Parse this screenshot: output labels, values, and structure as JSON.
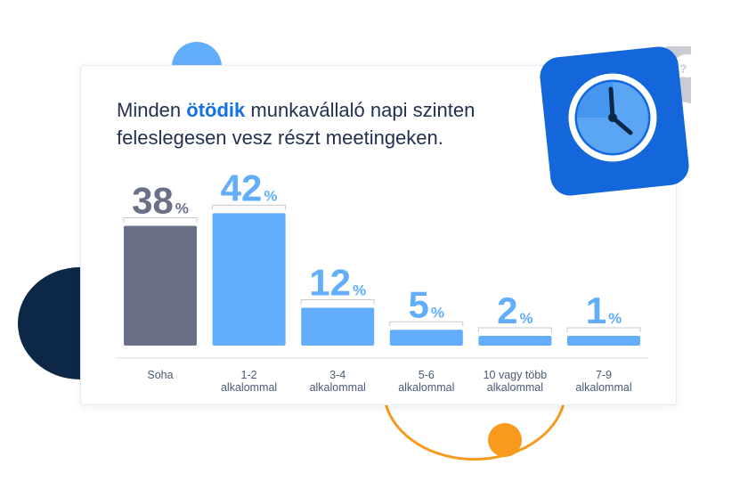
{
  "headline": {
    "prefix": "Minden ",
    "highlight": "ötödik",
    "suffix": " munkavállaló napi szinten feleslegesen vesz részt meetingeken."
  },
  "chart_data": {
    "type": "bar",
    "title": "",
    "xlabel": "",
    "ylabel": "",
    "ylim": [
      0,
      45
    ],
    "value_suffix": "%",
    "categories": [
      [
        "Soha"
      ],
      [
        "1-2",
        "alkalommal"
      ],
      [
        "3-4",
        "alkalommal"
      ],
      [
        "5-6",
        "alkalommal"
      ],
      [
        "10 vagy több",
        "alkalommal"
      ],
      [
        "7-9",
        "alkalommal"
      ]
    ],
    "values": [
      38,
      42,
      12,
      5,
      2,
      1
    ],
    "colors": [
      "#6a7186",
      "#63aefc",
      "#63aefc",
      "#63aefc",
      "#63aefc",
      "#63aefc"
    ]
  },
  "icons": {
    "clock": "clock-icon",
    "chat": "question-chat-icon"
  },
  "colors": {
    "accent": "#1472e6",
    "bar_blue": "#63aefc",
    "bar_gray": "#6a7186",
    "navy": "#0d2748",
    "orange": "#f89a1c"
  }
}
